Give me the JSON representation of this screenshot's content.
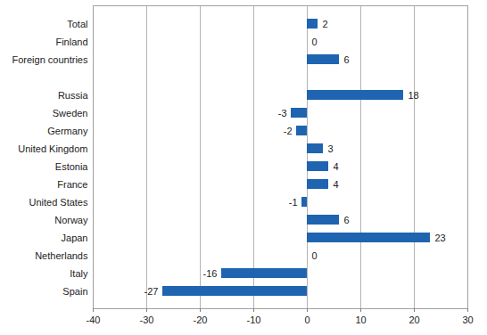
{
  "chart_data": {
    "type": "bar",
    "orientation": "horizontal",
    "categories": [
      "Total",
      "Finland",
      "Foreign countries",
      null,
      "Russia",
      "Sweden",
      "Germany",
      "United Kingdom",
      "Estonia",
      "France",
      "United States",
      "Norway",
      "Japan",
      "Netherlands",
      "Italy",
      "Spain"
    ],
    "values": [
      2,
      0,
      6,
      null,
      18,
      -3,
      -2,
      3,
      4,
      4,
      -1,
      6,
      23,
      0,
      -16,
      -27
    ],
    "color": "#1f64b0",
    "xlim": [
      -40,
      30
    ],
    "xticks": [
      -40,
      -30,
      -20,
      -10,
      0,
      10,
      20,
      30
    ],
    "grid": true,
    "data_labels": true
  }
}
